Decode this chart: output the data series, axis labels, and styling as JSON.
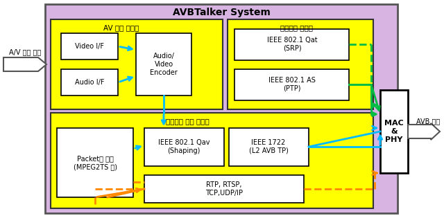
{
  "title": "AVBTalker System",
  "bg_outer": "#d8b4e2",
  "bg_yellow": "#ffff00",
  "bg_white": "#ffffff",
  "arrow_blue": "#00bbff",
  "arrow_green": "#00bb44",
  "arrow_orange": "#ff8800",
  "blocks": {
    "av_section_label": "AV 신호 압축부",
    "packet_section_label": "패킷전달 관리부",
    "streaming_section_label": "스트리밍 패킷 생성부",
    "video_if": "Video I/F",
    "audio_if": "Audio I/F",
    "av_encoder": "Audio/\nVideo\nEncoder",
    "ieee_srp": "IEEE 802.1 Qat\n(SRP)",
    "ieee_ptp": "IEEE 802.1 AS\n(PTP)",
    "packet_block": "Packet화 블록\n(MPEG2TS 등)",
    "ieee_shaping": "IEEE 802.1 Qav\n(Shaping)",
    "ieee_avbtp": "IEEE 1722\n(L2 AVB TP)",
    "rtp": "RTP, RTSP,\nTCP,UDP/IP",
    "mac_phy": "MAC\n&\nPHY",
    "input_label": "A/V 신호 입력",
    "output_label": "AVB 신호"
  }
}
